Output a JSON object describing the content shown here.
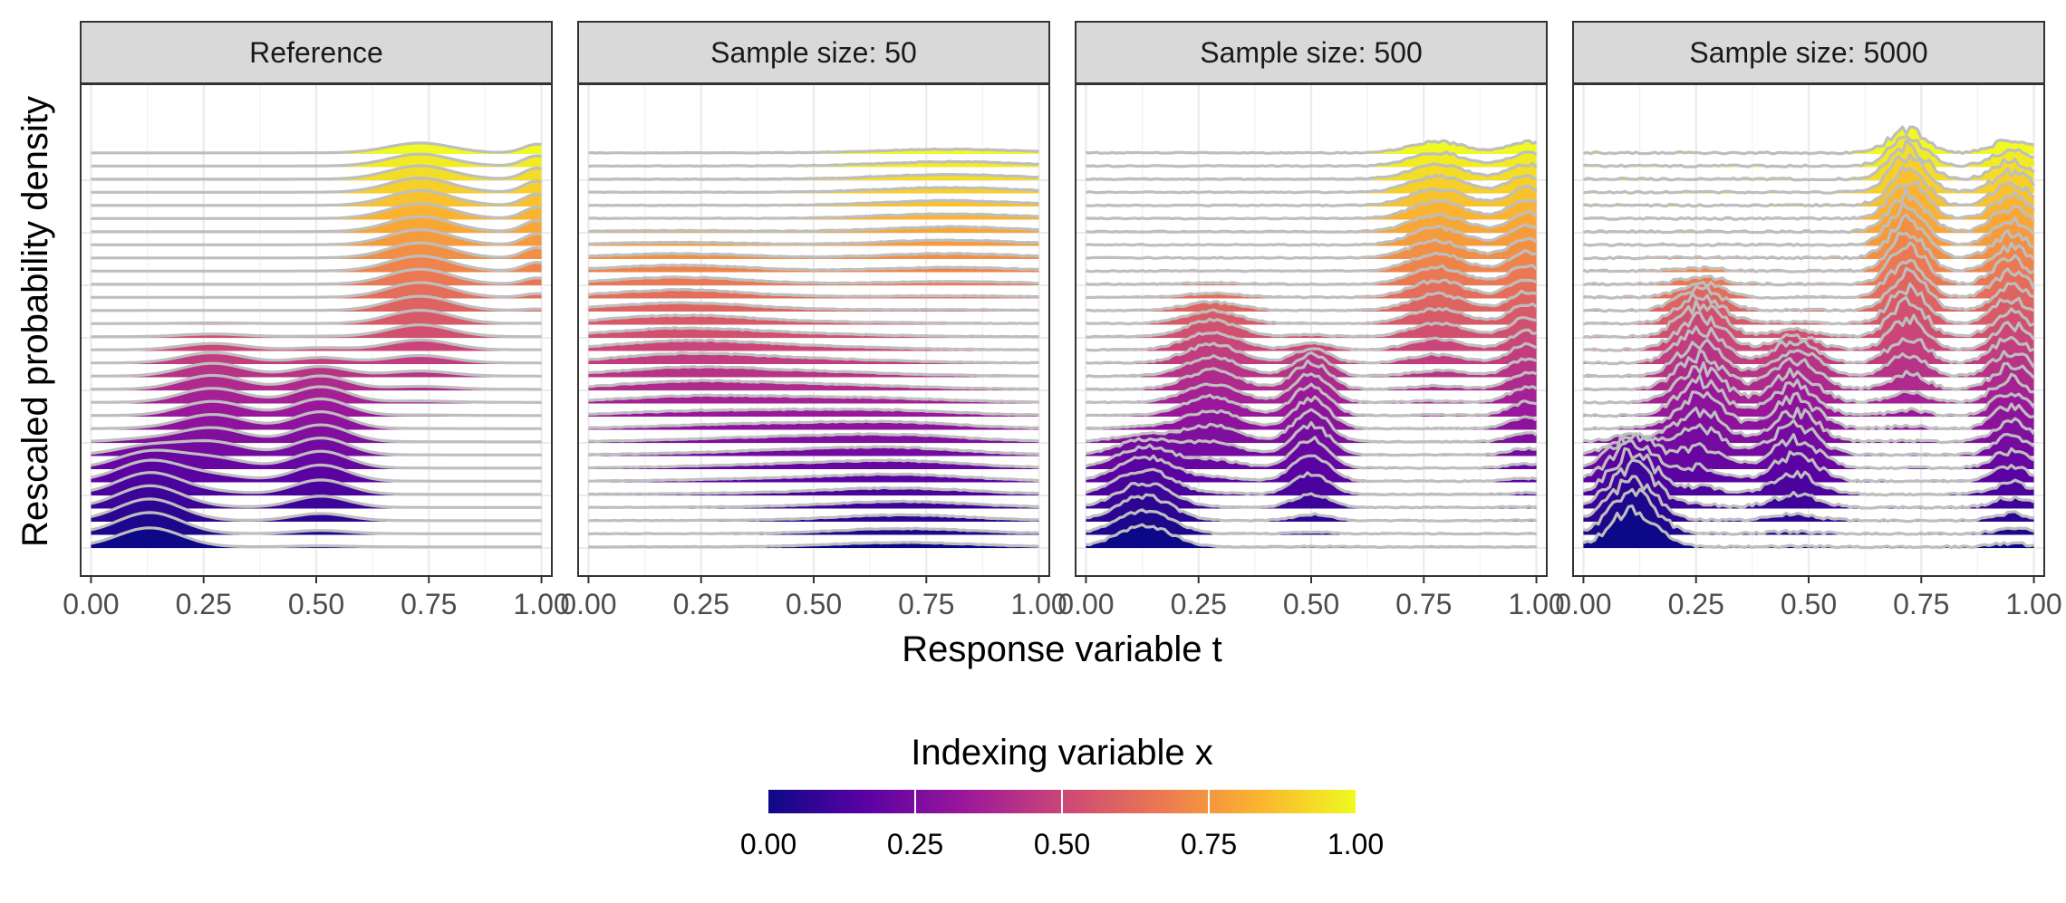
{
  "chart_data": {
    "type": "area",
    "subtype": "ridgeline",
    "xlabel": "Response variable t",
    "ylabel": "Rescaled probability density",
    "xlim": [
      0,
      1
    ],
    "x_ticks": [
      "0.00",
      "0.25",
      "0.50",
      "0.75",
      "1.00"
    ],
    "grid": true,
    "ridges_per_panel": 31,
    "index_range": [
      0,
      1
    ],
    "ridge_outline_color": "#BEBEBE",
    "panels": [
      {
        "title": "Reference",
        "bumps": [
          {
            "center": 0.13,
            "width": 0.07,
            "height": 1.15,
            "x_from": 0.0,
            "x_to": 0.18
          },
          {
            "center": 0.27,
            "width": 0.07,
            "height": 0.75,
            "x_from": 0.22,
            "x_to": 0.45
          },
          {
            "center": 0.51,
            "width": 0.06,
            "height": 0.9,
            "x_from": 0.12,
            "x_to": 0.4
          },
          {
            "center": 0.73,
            "width": 0.07,
            "height": 0.8,
            "x_from": 0.5,
            "x_to": 1.0
          },
          {
            "center": 0.99,
            "width": 0.03,
            "height": 0.6,
            "x_from": 0.7,
            "x_to": 1.0
          }
        ],
        "noise": 0.0
      },
      {
        "title": "Sample size: 50",
        "bumps": [
          {
            "center": 0.2,
            "width": 0.15,
            "height": 0.4,
            "x_from": 0.4,
            "x_to": 0.7
          },
          {
            "center": 0.7,
            "width": 0.15,
            "height": 0.3,
            "x_from": 0.0,
            "x_to": 0.3
          },
          {
            "center": 0.45,
            "width": 0.2,
            "height": 0.25,
            "x_from": 0.2,
            "x_to": 0.5
          },
          {
            "center": 0.8,
            "width": 0.15,
            "height": 0.25,
            "x_from": 0.7,
            "x_to": 1.0
          }
        ],
        "noise": 0.04
      },
      {
        "title": "Sample size: 500",
        "bumps": [
          {
            "center": 0.13,
            "width": 0.06,
            "height": 1.3,
            "x_from": 0.0,
            "x_to": 0.2
          },
          {
            "center": 0.28,
            "width": 0.06,
            "height": 1.0,
            "x_from": 0.25,
            "x_to": 0.55
          },
          {
            "center": 0.5,
            "width": 0.04,
            "height": 1.6,
            "x_from": 0.15,
            "x_to": 0.42
          },
          {
            "center": 0.78,
            "width": 0.06,
            "height": 0.9,
            "x_from": 0.5,
            "x_to": 1.0
          },
          {
            "center": 0.98,
            "width": 0.04,
            "height": 1.0,
            "x_from": 0.3,
            "x_to": 1.0
          }
        ],
        "noise": 0.08
      },
      {
        "title": "Sample size: 5000",
        "bumps": [
          {
            "center": 0.11,
            "width": 0.05,
            "height": 2.2,
            "x_from": 0.0,
            "x_to": 0.18
          },
          {
            "center": 0.26,
            "width": 0.05,
            "height": 1.8,
            "x_from": 0.22,
            "x_to": 0.58
          },
          {
            "center": 0.47,
            "width": 0.05,
            "height": 1.6,
            "x_from": 0.15,
            "x_to": 0.45
          },
          {
            "center": 0.72,
            "width": 0.04,
            "height": 2.0,
            "x_from": 0.45,
            "x_to": 1.0
          },
          {
            "center": 0.95,
            "width": 0.04,
            "height": 1.3,
            "x_from": 0.15,
            "x_to": 1.0
          }
        ],
        "noise": 0.16
      }
    ],
    "legend": {
      "title": "Indexing variable x",
      "placement": "bottom",
      "ticks": [
        "0.00",
        "0.25",
        "0.50",
        "0.75",
        "1.00"
      ],
      "colormap": "plasma",
      "stops": [
        "#0D0887",
        "#5B02A3",
        "#9A179B",
        "#CB4678",
        "#EB7852",
        "#FBB32F",
        "#F0F921"
      ]
    }
  }
}
